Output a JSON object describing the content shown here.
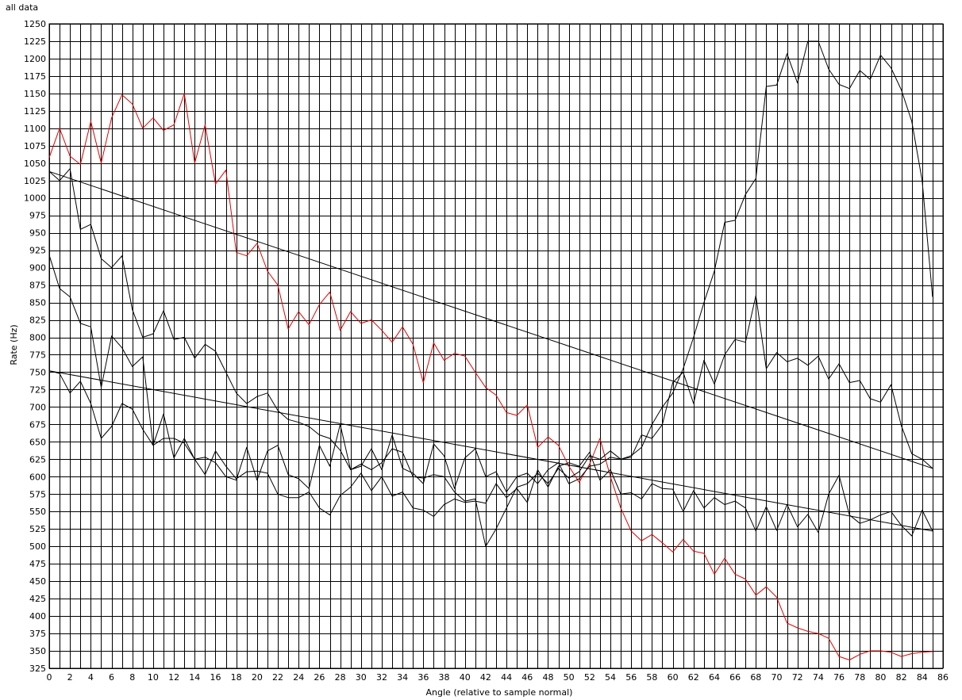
{
  "chart_data": {
    "type": "line",
    "title": "all data",
    "xlabel": "Angle (relative to sample normal)",
    "ylabel": "Rate (Hz)",
    "xlim": [
      0,
      86
    ],
    "ylim": [
      325,
      1250
    ],
    "x_major_step": 2,
    "x_grid_step": 1,
    "y_step": 25,
    "grid": true,
    "series": [
      {
        "color": "#e00000",
        "x": [
          0,
          1,
          2,
          3,
          4,
          5,
          6,
          7,
          8,
          9,
          10,
          11,
          12,
          13,
          14,
          15,
          16,
          17,
          18,
          19,
          20,
          21,
          22,
          23,
          24,
          25,
          26,
          27,
          28,
          29,
          30,
          31,
          32,
          33,
          34,
          35,
          36,
          37,
          38,
          39,
          40,
          41,
          42,
          43,
          44,
          45,
          46,
          47,
          48,
          49,
          50,
          51,
          52,
          53,
          54,
          55,
          56,
          57,
          58,
          59,
          60,
          61,
          62,
          63,
          64,
          65,
          66,
          67,
          68,
          69,
          70,
          71,
          72,
          73,
          74,
          75,
          76,
          77,
          78,
          79,
          80,
          81,
          82,
          83,
          84,
          85
        ],
        "y": [
          1058,
          1100,
          1060,
          1048,
          1110,
          1050,
          1115,
          1148,
          1135,
          1100,
          1115,
          1097,
          1105,
          1150,
          1050,
          1105,
          1020,
          1040,
          922,
          917,
          935,
          895,
          875,
          812,
          837,
          818,
          847,
          865,
          810,
          837,
          820,
          825,
          810,
          793,
          815,
          790,
          735,
          792,
          767,
          777,
          773,
          750,
          728,
          717,
          692,
          688,
          703,
          642,
          657,
          645,
          615,
          592,
          618,
          655,
          600,
          555,
          522,
          508,
          517,
          505,
          492,
          510,
          493,
          490,
          460,
          483,
          460,
          453,
          430,
          442,
          427,
          390,
          383,
          378,
          375,
          368,
          342,
          337,
          345,
          350,
          350,
          348,
          342,
          346,
          348,
          349
        ]
      },
      {
        "color": "#000000",
        "x": [
          0,
          1,
          2,
          3,
          4,
          5,
          6,
          7,
          8,
          9,
          10,
          11,
          12,
          13,
          14,
          15,
          16,
          17,
          18,
          19,
          20,
          21,
          22,
          23,
          24,
          25,
          26,
          27,
          28,
          29,
          30,
          31,
          32,
          33,
          34,
          35,
          36,
          37,
          38,
          39,
          40,
          41,
          42,
          43,
          44,
          45,
          46,
          47,
          48,
          49,
          50,
          51,
          52,
          53,
          54,
          55,
          56,
          57,
          58,
          59,
          60,
          61,
          62,
          63,
          64,
          65,
          66,
          67,
          68,
          69,
          70,
          71,
          72,
          73,
          74,
          75,
          76,
          77,
          78,
          79,
          80,
          81,
          82,
          83,
          84,
          85
        ],
        "y": [
          1038,
          1025,
          1042,
          955,
          962,
          913,
          900,
          917,
          840,
          800,
          805,
          838,
          797,
          800,
          770,
          790,
          780,
          750,
          720,
          705,
          715,
          720,
          695,
          682,
          678,
          672,
          660,
          655,
          638,
          610,
          618,
          610,
          620,
          640,
          635,
          600,
          598,
          603,
          600,
          578,
          565,
          568,
          500,
          525,
          555,
          585,
          590,
          605,
          590,
          612,
          598,
          607,
          630,
          625,
          637,
          625,
          628,
          660,
          655,
          675,
          735,
          750,
          705,
          767,
          733,
          775,
          797,
          793,
          860,
          755,
          778,
          765,
          770,
          760,
          773,
          740,
          762,
          735,
          738,
          712,
          707,
          732,
          673,
          633,
          625,
          612
        ]
      },
      {
        "color": "#000000",
        "x": [
          0,
          1,
          2,
          3,
          4,
          5,
          6,
          7,
          8,
          9,
          10,
          11,
          12,
          13,
          14,
          15,
          16,
          17,
          18,
          19,
          20,
          21,
          22,
          23,
          24,
          25,
          26,
          27,
          28,
          29,
          30,
          31,
          32,
          33,
          34,
          35,
          36,
          37,
          38,
          39,
          40,
          41,
          42,
          43,
          44,
          45,
          46,
          47,
          48,
          49,
          50,
          51,
          52,
          53,
          54,
          55,
          56,
          57,
          58,
          59,
          60,
          61,
          62,
          63,
          64,
          65,
          66,
          67,
          68,
          69,
          70,
          71,
          72,
          73,
          74,
          75,
          76,
          77,
          78,
          79,
          80,
          81,
          82,
          83,
          84,
          85
        ],
        "y": [
          918,
          870,
          858,
          820,
          815,
          728,
          802,
          785,
          758,
          772,
          645,
          690,
          627,
          655,
          625,
          628,
          620,
          600,
          595,
          642,
          595,
          637,
          645,
          603,
          597,
          583,
          645,
          615,
          675,
          610,
          615,
          640,
          610,
          660,
          612,
          605,
          590,
          647,
          630,
          583,
          627,
          640,
          600,
          607,
          578,
          600,
          605,
          590,
          610,
          620,
          590,
          597,
          615,
          618,
          628,
          625,
          630,
          642,
          675,
          700,
          720,
          755,
          800,
          850,
          895,
          965,
          968,
          1005,
          1028,
          1160,
          1162,
          1207,
          1165,
          1225,
          1225,
          1185,
          1163,
          1157,
          1183,
          1170,
          1205,
          1187,
          1155,
          1110,
          1025,
          858
        ]
      },
      {
        "color": "#000000",
        "x": [
          0,
          1,
          2,
          3,
          4,
          5,
          6,
          7,
          8,
          9,
          10,
          11,
          12,
          13,
          14,
          15,
          16,
          17,
          18,
          19,
          20,
          21,
          22,
          23,
          24,
          25,
          26,
          27,
          28,
          29,
          30,
          31,
          32,
          33,
          34,
          35,
          36,
          37,
          38,
          39,
          40,
          41,
          42,
          43,
          44,
          45,
          46,
          47,
          48,
          49,
          50,
          51,
          52,
          53,
          54,
          55,
          56,
          57,
          58,
          59,
          60,
          61,
          62,
          63,
          64,
          65,
          66,
          67,
          68,
          69,
          70,
          71,
          72,
          73,
          74,
          75,
          76,
          77,
          78,
          79,
          80,
          81,
          82,
          83,
          84,
          85
        ],
        "y": [
          752,
          748,
          720,
          737,
          705,
          655,
          672,
          705,
          697,
          668,
          645,
          655,
          655,
          648,
          625,
          603,
          637,
          615,
          597,
          607,
          608,
          605,
          575,
          570,
          570,
          578,
          555,
          545,
          573,
          585,
          605,
          580,
          600,
          572,
          578,
          555,
          552,
          543,
          560,
          568,
          563,
          565,
          562,
          590,
          570,
          583,
          563,
          610,
          585,
          615,
          620,
          615,
          635,
          595,
          610,
          575,
          577,
          568,
          590,
          583,
          582,
          550,
          580,
          555,
          570,
          560,
          565,
          555,
          522,
          557,
          523,
          560,
          528,
          546,
          520,
          575,
          602,
          545,
          533,
          538,
          545,
          550,
          530,
          515,
          552,
          522
        ]
      },
      {
        "color": "#000000",
        "x": [
          0,
          85
        ],
        "y": [
          1038,
          612
        ]
      },
      {
        "color": "#000000",
        "x": [
          0,
          85
        ],
        "y": [
          752,
          522
        ]
      }
    ]
  }
}
